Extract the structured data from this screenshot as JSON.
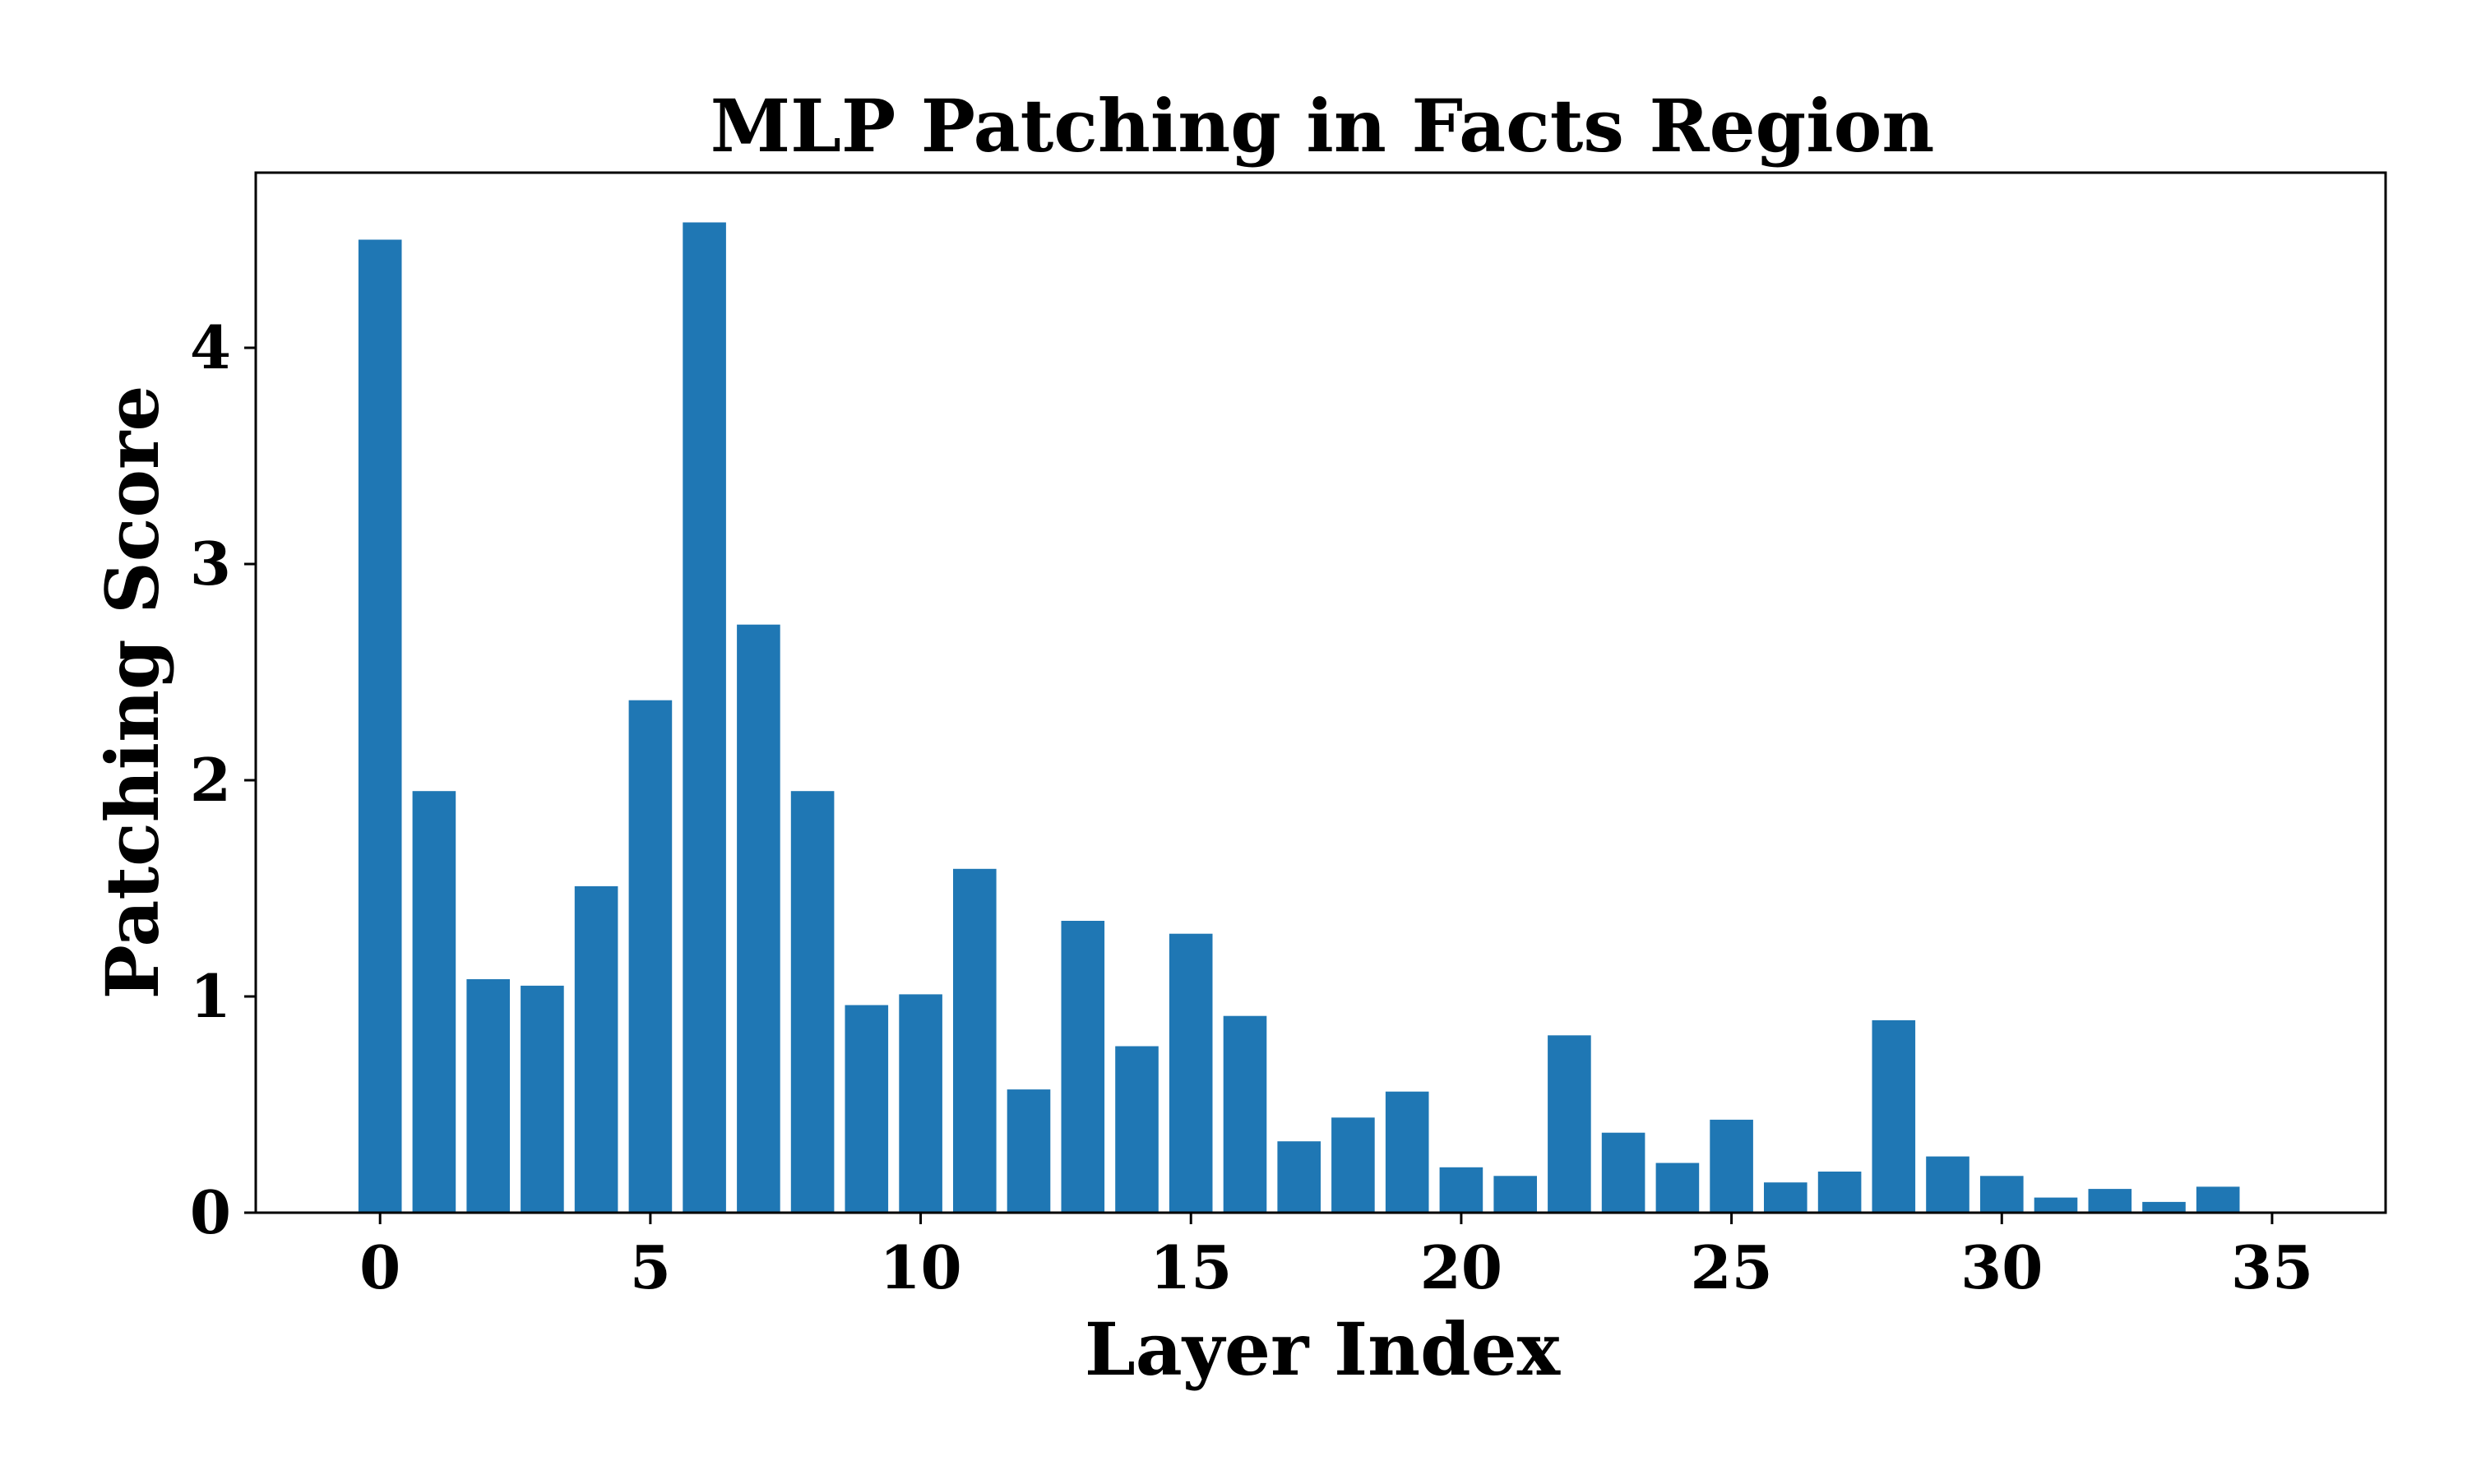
{
  "chart_data": {
    "type": "bar",
    "title": "MLP Patching in Facts Region",
    "xlabel": "Layer Index",
    "ylabel": "Patching Score",
    "x": [
      0,
      1,
      2,
      3,
      4,
      5,
      6,
      7,
      8,
      9,
      10,
      11,
      12,
      13,
      14,
      15,
      16,
      17,
      18,
      19,
      20,
      21,
      22,
      23,
      24,
      25,
      26,
      27,
      28,
      29,
      30,
      31,
      32,
      33,
      34
    ],
    "values": [
      4.5,
      1.95,
      1.08,
      1.05,
      1.51,
      2.37,
      4.58,
      2.72,
      1.95,
      0.96,
      1.01,
      1.59,
      0.57,
      1.35,
      0.77,
      1.29,
      0.91,
      0.33,
      0.44,
      0.56,
      0.21,
      0.17,
      0.82,
      0.37,
      0.23,
      0.43,
      0.14,
      0.19,
      0.89,
      0.26,
      0.17,
      0.07,
      0.11,
      0.05,
      0.12
    ],
    "xlim": [
      -2.3,
      37.1
    ],
    "ylim": [
      0,
      4.81
    ],
    "xticks": [
      0,
      5,
      10,
      15,
      20,
      25,
      30,
      35
    ],
    "yticks": [
      0,
      1,
      2,
      3,
      4
    ],
    "bar_color": "#1f77b4",
    "grid": false,
    "legend": null
  }
}
